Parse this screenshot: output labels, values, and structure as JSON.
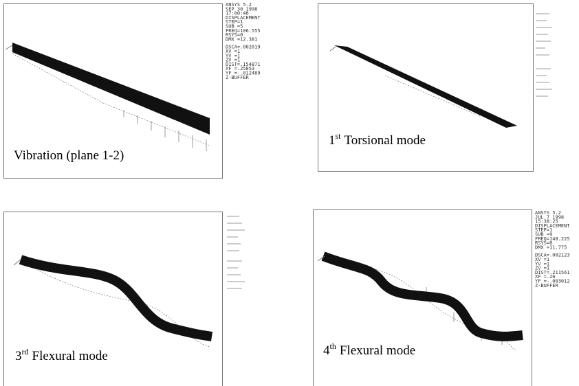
{
  "panels": [
    {
      "caption": {
        "text": "Vibration (plane 1-2)"
      },
      "info": {
        "status": [
          "ANSYS 5.2",
          "SEP 30 1998",
          "17:00:46",
          "DISPLACEMENT",
          "STEP=1",
          "SUB =5",
          "FREQ=106.555",
          "RSYS=0",
          "DMX =12.381"
        ],
        "view": [
          "DSCA=.002019",
          "XV =1",
          "YV =1",
          "ZV =1",
          "DIST=.154871",
          "XF =.25853",
          "YF =-.012489",
          "Z-BUFFER"
        ]
      }
    },
    {
      "caption": {
        "prefix": "1",
        "superscript": "st",
        "text": "Torsional mode"
      }
    },
    {
      "caption": {
        "prefix": "3",
        "superscript": "rd",
        "text": "Flexural mode"
      }
    },
    {
      "caption": {
        "prefix": "4",
        "superscript": "th",
        "text": "Flexural mode"
      },
      "info": {
        "status": [
          "ANSYS 5.2",
          "JUL 7 1998",
          "15:38:25",
          "DISPLACEMENT",
          "STEP=1",
          "SUB =9",
          "FREQ=148.225",
          "RSYS=0",
          "DMX =11.775"
        ],
        "view": [
          "DSCA=.002123",
          "XV =1",
          "YV =1",
          "ZV =1",
          "DIST=.211561",
          "XF =.26",
          "YF =-.003012",
          "Z-BUFFER"
        ]
      }
    }
  ]
}
